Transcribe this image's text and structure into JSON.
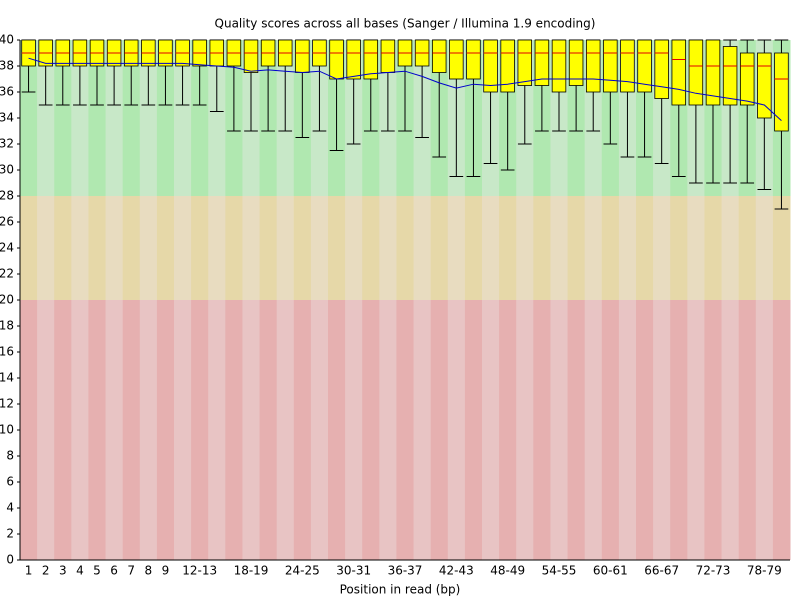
{
  "chart_data": {
    "type": "box",
    "title": "Quality scores across all bases (Sanger / Illumina 1.9 encoding)",
    "x_label": "Position in read (bp)",
    "categories": [
      "1",
      "2",
      "3",
      "4",
      "5",
      "6",
      "7",
      "8",
      "9",
      null,
      "12-13",
      null,
      null,
      "18-19",
      null,
      null,
      "24-25",
      null,
      null,
      "30-31",
      null,
      null,
      "36-37",
      null,
      null,
      "42-43",
      null,
      null,
      "48-49",
      null,
      null,
      "54-55",
      null,
      null,
      "60-61",
      null,
      null,
      "66-67",
      null,
      null,
      "72-73",
      null,
      null,
      "78-79",
      null
    ],
    "low": [
      36,
      35,
      35,
      35,
      35,
      35,
      35,
      35,
      35,
      35,
      35,
      34.5,
      33,
      33,
      33,
      33,
      32.5,
      33,
      31.5,
      32,
      33,
      33,
      33,
      32.5,
      31,
      29.5,
      29.5,
      30.5,
      30,
      32,
      33,
      33,
      33,
      33,
      32,
      31,
      31,
      30.5,
      29.5,
      29,
      29,
      29,
      29,
      28.5,
      27
    ],
    "q1": [
      38,
      38,
      38,
      38,
      38,
      38,
      38,
      38,
      38,
      38,
      38,
      38,
      38,
      37.5,
      38,
      38,
      37.5,
      38,
      37,
      37,
      37,
      37.5,
      38,
      38,
      37.5,
      37,
      37,
      36,
      36,
      36.5,
      36.5,
      36,
      36.5,
      36,
      36,
      36,
      36,
      35.5,
      35,
      35,
      35,
      35,
      35,
      34,
      33
    ],
    "median": [
      39,
      39,
      39,
      39,
      39,
      39,
      39,
      39,
      39,
      39,
      39,
      39,
      39,
      39,
      39,
      39,
      39,
      39,
      39,
      39,
      39,
      39,
      39,
      39,
      39,
      39,
      39,
      39,
      39,
      39,
      39,
      39,
      39,
      39,
      39,
      39,
      39,
      39,
      38.5,
      38,
      38,
      38,
      38,
      38,
      37
    ],
    "q3": [
      40,
      40,
      40,
      40,
      40,
      40,
      40,
      40,
      40,
      40,
      40,
      40,
      40,
      40,
      40,
      40,
      40,
      40,
      40,
      40,
      40,
      40,
      40,
      40,
      40,
      40,
      40,
      40,
      40,
      40,
      40,
      40,
      40,
      40,
      40,
      40,
      40,
      40,
      40,
      40,
      40,
      39.5,
      39,
      39,
      39
    ],
    "high": [
      40,
      40,
      40,
      40,
      40,
      40,
      40,
      40,
      40,
      40,
      40,
      40,
      40,
      40,
      40,
      40,
      40,
      40,
      40,
      40,
      40,
      40,
      40,
      40,
      40,
      40,
      40,
      40,
      40,
      40,
      40,
      40,
      40,
      40,
      40,
      40,
      40,
      40,
      40,
      40,
      40,
      40,
      40,
      40,
      40
    ],
    "mean": [
      38.6,
      38.2,
      38.2,
      38.2,
      38.2,
      38.2,
      38.2,
      38.2,
      38.2,
      38.2,
      38.1,
      38,
      37.9,
      37.6,
      37.7,
      37.6,
      37.5,
      37.6,
      37,
      37.2,
      37.4,
      37.5,
      37.6,
      37.2,
      36.7,
      36.3,
      36.6,
      36.5,
      36.6,
      36.8,
      37,
      37,
      37,
      37,
      36.9,
      36.8,
      36.6,
      36.4,
      36.2,
      35.9,
      35.7,
      35.5,
      35.3,
      35,
      33.8
    ],
    "box_color": "#ffff00",
    "median_color": "#e00000",
    "mean_color": "#0000cc",
    "zones": [
      {
        "from": 28,
        "to": 40,
        "color": "#b0e8b0",
        "alt": "#c8e8c8"
      },
      {
        "from": 20,
        "to": 28,
        "color": "#e6d8a8",
        "alt": "#e8dcc0"
      },
      {
        "from": 0,
        "to": 20,
        "color": "#e6b0b0",
        "alt": "#e8c4c4"
      }
    ],
    "ylim": [
      0,
      40
    ],
    "yticks": [
      0,
      2,
      4,
      6,
      8,
      10,
      12,
      14,
      16,
      18,
      20,
      22,
      24,
      26,
      28,
      30,
      32,
      34,
      36,
      38,
      40
    ]
  }
}
